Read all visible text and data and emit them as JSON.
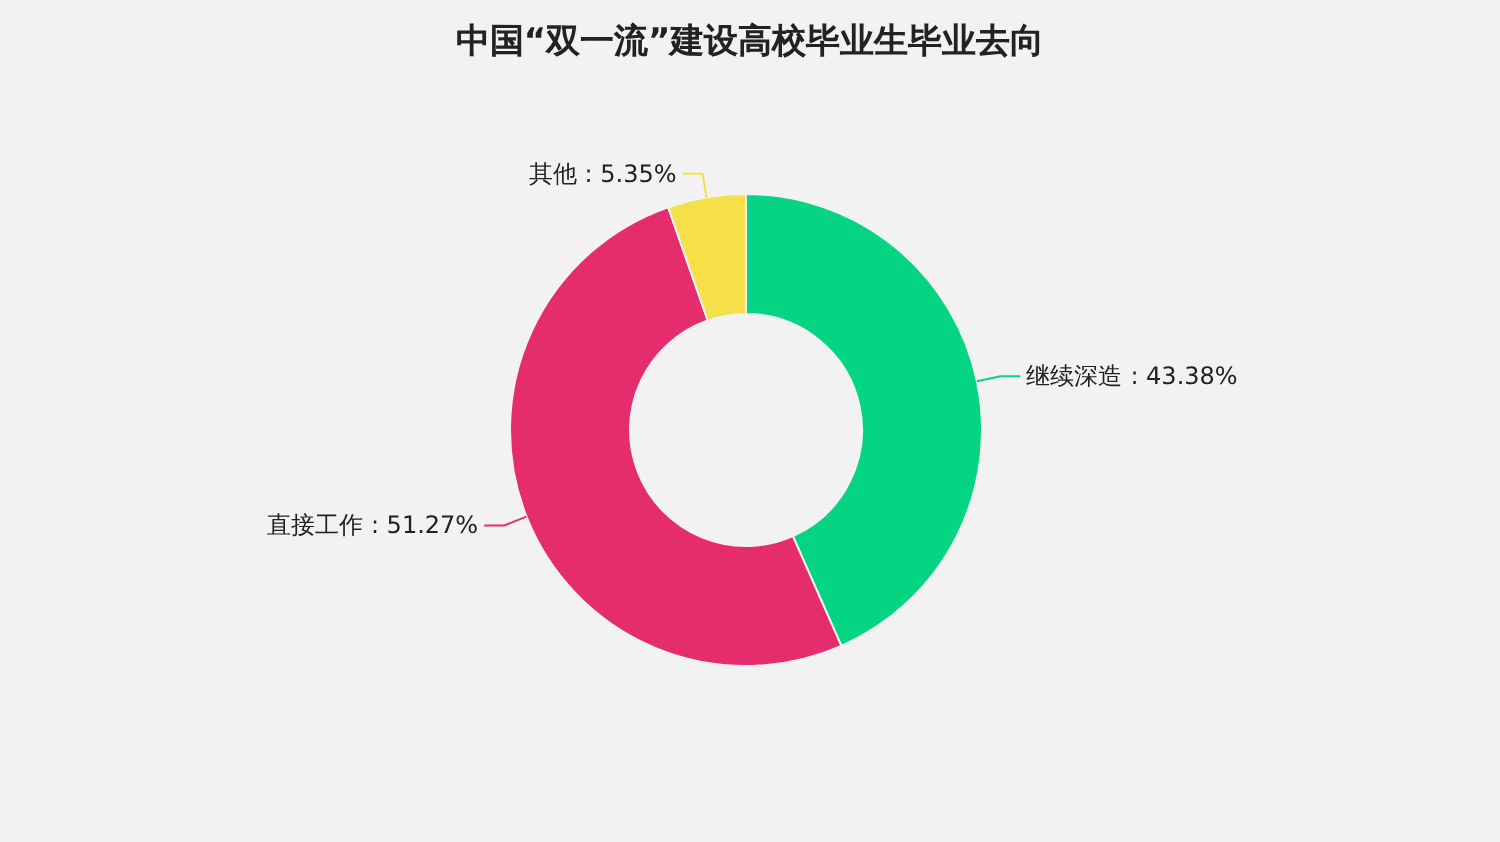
{
  "chart_data": {
    "type": "donut",
    "title": "中国“双一流”建设高校毕业生毕业去向",
    "categories": [
      "继续深造",
      "直接工作",
      "其他"
    ],
    "values": [
      43.38,
      51.27,
      5.35
    ],
    "value_labels": [
      ": 43.38%",
      ": 51.27%",
      ": 5.35%"
    ],
    "colors": [
      "#05d483",
      "#e52d6e",
      "#f5e04a"
    ]
  }
}
